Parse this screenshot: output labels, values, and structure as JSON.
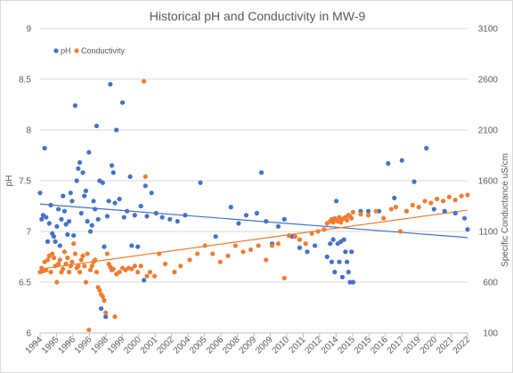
{
  "chart_data": {
    "type": "scatter",
    "title": "Historical pH and Conductivity in MW-9",
    "xlabel": "",
    "ylabel": "pH",
    "y2label": "Specific Conductance uS/cm",
    "x_ticks": [
      "1994",
      "1995",
      "1996",
      "1996",
      "1998",
      "1999",
      "2000",
      "2001",
      "2002",
      "2004",
      "2005",
      "2006",
      "2008",
      "2009",
      "2009",
      "2010",
      "2011",
      "2012",
      "2014",
      "2015",
      "2015",
      "2016",
      "2017",
      "2019",
      "2020",
      "2021",
      "2022"
    ],
    "xlim": [
      1994,
      2022
    ],
    "ylim": [
      6,
      9
    ],
    "y_ticks": [
      "6",
      "6.5",
      "7",
      "7.5",
      "8",
      "8.5",
      "9"
    ],
    "y2lim": [
      100,
      3100
    ],
    "y2_ticks": [
      "100",
      "600",
      "1100",
      "1600",
      "2100",
      "2600",
      "3100"
    ],
    "legend_position": "top-left",
    "grid": "horizontal",
    "colors": {
      "ph": "#4472c4",
      "conductivity": "#ed7d31"
    },
    "series": [
      {
        "name": "pH",
        "axis": "left",
        "points": [
          [
            1994.0,
            7.38
          ],
          [
            1994.1,
            7.12
          ],
          [
            1994.2,
            7.16
          ],
          [
            1994.3,
            7.82
          ],
          [
            1994.4,
            7.14
          ],
          [
            1994.5,
            6.9
          ],
          [
            1994.6,
            7.08
          ],
          [
            1994.7,
            7.26
          ],
          [
            1994.8,
            6.98
          ],
          [
            1994.9,
            6.95
          ],
          [
            1995.0,
            6.9
          ],
          [
            1995.1,
            7.05
          ],
          [
            1995.2,
            7.22
          ],
          [
            1995.3,
            6.86
          ],
          [
            1995.4,
            7.12
          ],
          [
            1995.5,
            7.35
          ],
          [
            1995.6,
            7.2
          ],
          [
            1995.7,
            7.07
          ],
          [
            1995.8,
            6.97
          ],
          [
            1995.9,
            7.1
          ],
          [
            1996.0,
            7.38
          ],
          [
            1996.1,
            7.3
          ],
          [
            1996.2,
            6.96
          ],
          [
            1996.3,
            8.24
          ],
          [
            1996.4,
            7.5
          ],
          [
            1996.5,
            7.62
          ],
          [
            1996.6,
            7.68
          ],
          [
            1996.7,
            7.18
          ],
          [
            1996.8,
            7.58
          ],
          [
            1996.9,
            7.35
          ],
          [
            1997.0,
            7.4
          ],
          [
            1997.1,
            7.1
          ],
          [
            1997.2,
            7.78
          ],
          [
            1997.3,
            7.0
          ],
          [
            1997.4,
            7.06
          ],
          [
            1997.5,
            7.3
          ],
          [
            1997.6,
            7.22
          ],
          [
            1997.7,
            8.04
          ],
          [
            1997.8,
            7.12
          ],
          [
            1997.9,
            7.5
          ],
          [
            1998.0,
            6.24
          ],
          [
            1998.1,
            7.48
          ],
          [
            1998.2,
            6.85
          ],
          [
            1998.3,
            6.16
          ],
          [
            1998.4,
            7.15
          ],
          [
            1998.5,
            7.3
          ],
          [
            1998.6,
            8.45
          ],
          [
            1998.7,
            7.65
          ],
          [
            1998.8,
            7.58
          ],
          [
            1998.9,
            7.28
          ],
          [
            1999.0,
            8.0
          ],
          [
            1999.2,
            7.32
          ],
          [
            1999.4,
            8.27
          ],
          [
            1999.5,
            7.14
          ],
          [
            1999.7,
            7.2
          ],
          [
            1999.9,
            7.54
          ],
          [
            2000.0,
            6.86
          ],
          [
            2000.2,
            7.16
          ],
          [
            2000.4,
            6.85
          ],
          [
            2000.6,
            7.25
          ],
          [
            2000.8,
            6.52
          ],
          [
            2000.9,
            7.45
          ],
          [
            2001.0,
            7.15
          ],
          [
            2001.3,
            7.38
          ],
          [
            2001.6,
            7.18
          ],
          [
            2002.0,
            7.14
          ],
          [
            2002.5,
            7.12
          ],
          [
            2003.0,
            7.1
          ],
          [
            2003.5,
            7.16
          ],
          [
            2004.5,
            7.48
          ],
          [
            2005.5,
            6.95
          ],
          [
            2006.5,
            7.24
          ],
          [
            2007.0,
            7.08
          ],
          [
            2007.5,
            7.16
          ],
          [
            2008.2,
            7.18
          ],
          [
            2008.5,
            7.58
          ],
          [
            2008.8,
            7.1
          ],
          [
            2009.2,
            6.88
          ],
          [
            2009.6,
            7.05
          ],
          [
            2010.0,
            7.12
          ],
          [
            2010.5,
            6.95
          ],
          [
            2011.0,
            6.84
          ],
          [
            2011.5,
            6.8
          ],
          [
            2012.0,
            6.86
          ],
          [
            2012.8,
            6.75
          ],
          [
            2013.0,
            6.88
          ],
          [
            2013.1,
            6.7
          ],
          [
            2013.2,
            6.92
          ],
          [
            2013.3,
            6.6
          ],
          [
            2013.4,
            7.3
          ],
          [
            2013.5,
            6.88
          ],
          [
            2013.6,
            6.7
          ],
          [
            2013.7,
            6.9
          ],
          [
            2013.8,
            6.55
          ],
          [
            2013.9,
            6.92
          ],
          [
            2014.0,
            6.8
          ],
          [
            2014.1,
            6.7
          ],
          [
            2014.2,
            6.6
          ],
          [
            2014.3,
            6.5
          ],
          [
            2014.4,
            6.8
          ],
          [
            2014.5,
            6.5
          ],
          [
            2015.0,
            7.2
          ],
          [
            2015.5,
            7.2
          ],
          [
            2016.2,
            7.2
          ],
          [
            2016.8,
            7.67
          ],
          [
            2017.2,
            7.33
          ],
          [
            2017.7,
            7.7
          ],
          [
            2018.0,
            7.2
          ],
          [
            2018.5,
            7.49
          ],
          [
            2019.3,
            7.82
          ],
          [
            2019.8,
            7.22
          ],
          [
            2020.5,
            7.2
          ],
          [
            2021.2,
            7.18
          ],
          [
            2021.8,
            7.13
          ],
          [
            2022.0,
            7.02
          ]
        ]
      },
      {
        "name": "Conductivity",
        "axis": "right",
        "points": [
          [
            1994.0,
            700
          ],
          [
            1994.1,
            740
          ],
          [
            1994.2,
            710
          ],
          [
            1994.3,
            800
          ],
          [
            1994.4,
            720
          ],
          [
            1994.5,
            820
          ],
          [
            1994.6,
            860
          ],
          [
            1994.7,
            700
          ],
          [
            1994.8,
            880
          ],
          [
            1994.9,
            840
          ],
          [
            1995.0,
            760
          ],
          [
            1995.1,
            600
          ],
          [
            1995.2,
            780
          ],
          [
            1995.3,
            820
          ],
          [
            1995.4,
            700
          ],
          [
            1995.5,
            730
          ],
          [
            1995.6,
            900
          ],
          [
            1995.7,
            780
          ],
          [
            1995.8,
            840
          ],
          [
            1995.9,
            700
          ],
          [
            1996.0,
            760
          ],
          [
            1996.1,
            800
          ],
          [
            1996.2,
            980
          ],
          [
            1996.3,
            880
          ],
          [
            1996.4,
            740
          ],
          [
            1996.5,
            760
          ],
          [
            1996.6,
            700
          ],
          [
            1996.7,
            820
          ],
          [
            1996.8,
            860
          ],
          [
            1996.9,
            760
          ],
          [
            1997.0,
            600
          ],
          [
            1997.1,
            880
          ],
          [
            1997.2,
            130
          ],
          [
            1997.3,
            720
          ],
          [
            1997.4,
            760
          ],
          [
            1997.5,
            800
          ],
          [
            1997.6,
            820
          ],
          [
            1997.7,
            700
          ],
          [
            1997.8,
            550
          ],
          [
            1997.9,
            520
          ],
          [
            1998.0,
            480
          ],
          [
            1998.1,
            460
          ],
          [
            1998.2,
            420
          ],
          [
            1998.3,
            300
          ],
          [
            1998.4,
            880
          ],
          [
            1998.5,
            780
          ],
          [
            1998.6,
            750
          ],
          [
            1998.7,
            720
          ],
          [
            1998.8,
            730
          ],
          [
            1998.9,
            260
          ],
          [
            1999.0,
            680
          ],
          [
            1999.2,
            700
          ],
          [
            1999.4,
            740
          ],
          [
            1999.6,
            720
          ],
          [
            1999.8,
            740
          ],
          [
            2000.0,
            730
          ],
          [
            2000.2,
            760
          ],
          [
            2000.4,
            700
          ],
          [
            2000.6,
            760
          ],
          [
            2000.8,
            2580
          ],
          [
            2000.9,
            1640
          ],
          [
            2001.0,
            660
          ],
          [
            2001.2,
            700
          ],
          [
            2001.5,
            660
          ],
          [
            2001.8,
            880
          ],
          [
            2002.2,
            780
          ],
          [
            2002.8,
            700
          ],
          [
            2003.2,
            760
          ],
          [
            2003.8,
            820
          ],
          [
            2004.3,
            880
          ],
          [
            2004.8,
            960
          ],
          [
            2005.3,
            880
          ],
          [
            2005.8,
            800
          ],
          [
            2006.3,
            860
          ],
          [
            2006.8,
            960
          ],
          [
            2007.3,
            900
          ],
          [
            2007.8,
            920
          ],
          [
            2008.3,
            960
          ],
          [
            2008.8,
            820
          ],
          [
            2009.2,
            960
          ],
          [
            2009.6,
            980
          ],
          [
            2010.0,
            640
          ],
          [
            2010.3,
            1060
          ],
          [
            2010.7,
            1050
          ],
          [
            2011.0,
            1020
          ],
          [
            2011.4,
            980
          ],
          [
            2011.8,
            1080
          ],
          [
            2012.2,
            1100
          ],
          [
            2012.6,
            1120
          ],
          [
            2012.8,
            1180
          ],
          [
            2013.0,
            1200
          ],
          [
            2013.1,
            1220
          ],
          [
            2013.2,
            1190
          ],
          [
            2013.3,
            1230
          ],
          [
            2013.4,
            1210
          ],
          [
            2013.5,
            1200
          ],
          [
            2013.6,
            1240
          ],
          [
            2013.7,
            1190
          ],
          [
            2013.8,
            1220
          ],
          [
            2013.9,
            1230
          ],
          [
            2014.0,
            1240
          ],
          [
            2014.1,
            1210
          ],
          [
            2014.2,
            1260
          ],
          [
            2014.3,
            1250
          ],
          [
            2014.4,
            1230
          ],
          [
            2014.5,
            1290
          ],
          [
            2015.0,
            1270
          ],
          [
            2015.5,
            1260
          ],
          [
            2016.0,
            1300
          ],
          [
            2016.5,
            1230
          ],
          [
            2017.0,
            1320
          ],
          [
            2017.3,
            1340
          ],
          [
            2017.6,
            1100
          ],
          [
            2018.0,
            1300
          ],
          [
            2018.4,
            1360
          ],
          [
            2018.8,
            1340
          ],
          [
            2019.2,
            1400
          ],
          [
            2019.6,
            1380
          ],
          [
            2020.0,
            1420
          ],
          [
            2020.4,
            1400
          ],
          [
            2020.8,
            1440
          ],
          [
            2021.2,
            1410
          ],
          [
            2021.6,
            1450
          ],
          [
            2022.0,
            1460
          ]
        ]
      }
    ],
    "trendlines": [
      {
        "series": "pH",
        "axis": "left",
        "from": [
          1994,
          7.27
        ],
        "to": [
          2022,
          6.94
        ]
      },
      {
        "series": "Conductivity",
        "axis": "right",
        "from": [
          1994,
          730
        ],
        "to": [
          2022,
          1310
        ]
      }
    ]
  }
}
